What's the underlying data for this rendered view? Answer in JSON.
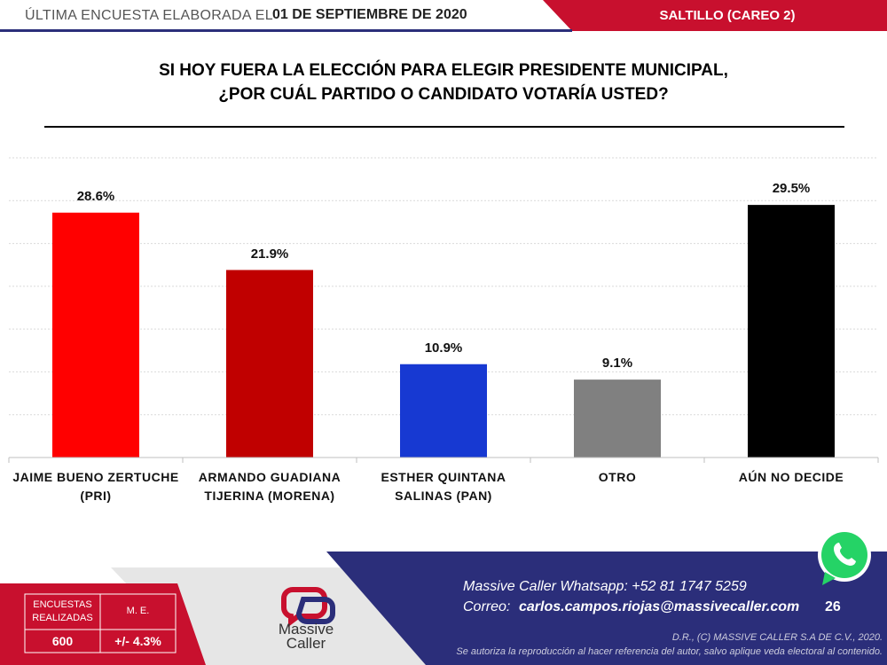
{
  "header": {
    "survey_label": "ÚLTIMA ENCUESTA ELABORADA EL",
    "date": "01 DE SEPTIEMBRE DE 2020",
    "location": "SALTILLO (CAREO 2)"
  },
  "chart_data": {
    "type": "bar",
    "title": "SI HOY FUERA LA ELECCIÓN PARA ELEGIR PRESIDENTE MUNICIPAL,\n¿POR CUÁL PARTIDO O CANDIDATO VOTARÍA USTED?",
    "categories": [
      "JAIME BUENO ZERTUCHE\n(PRI)",
      "ARMANDO GUADIANA\nTIJERINA (MORENA)",
      "ESTHER QUINTANA\nSALINAS (PAN)",
      "OTRO",
      "AÚN NO DECIDE"
    ],
    "values": [
      28.6,
      21.9,
      10.9,
      9.1,
      29.5
    ],
    "value_labels": [
      "28.6%",
      "21.9%",
      "10.9%",
      "9.1%",
      "29.5%"
    ],
    "colors": [
      "#ff0000",
      "#c00000",
      "#1739d2",
      "#808080",
      "#000000"
    ],
    "ylim": [
      0,
      35
    ],
    "yticks": [
      0,
      5,
      10,
      15,
      20,
      25,
      30,
      35
    ],
    "grid": true
  },
  "footer": {
    "table_headers": [
      "ENCUESTAS\nREALIZADAS",
      "M. E."
    ],
    "table_values": [
      "600",
      "+/- 4.3%"
    ],
    "logo": [
      "Massive",
      "Caller"
    ],
    "whatsapp": "Massive Caller Whatsapp:  +52  81 1747 5259",
    "email_label": "Correo:",
    "email": "carlos.campos.riojas@massivecaller.com",
    "page": "26",
    "copyright": "D.R., (C) MASSIVE CALLER S.A DE C.V., 2020.",
    "disclaimer": "Se autoriza la reproducción al hacer referencia del autor, salvo aplique veda electoral al contenido."
  }
}
